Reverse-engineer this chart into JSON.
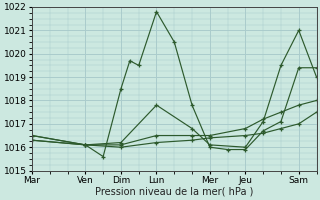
{
  "title": "Pression niveau de la mer( hPa )",
  "bg_color": "#cce8e0",
  "grid_color": "#aacccc",
  "line_color": "#2d5a2d",
  "x_labels": [
    "Mar",
    "Ven",
    "Dim",
    "Lun",
    "Mer",
    "Jeu",
    "Sam"
  ],
  "x_tick_pos": [
    0,
    3,
    5,
    7,
    10,
    12,
    15
  ],
  "ylim": [
    1015,
    1022
  ],
  "yticks": [
    1015,
    1016,
    1017,
    1018,
    1019,
    1020,
    1021,
    1022
  ],
  "xlim": [
    0,
    16
  ],
  "series": [
    {
      "x": [
        0,
        3,
        4,
        5,
        5.5,
        6,
        7,
        8,
        9,
        10,
        11,
        12,
        13,
        14,
        15,
        16
      ],
      "y": [
        1016.5,
        1016.1,
        1015.6,
        1018.5,
        1019.7,
        1019.5,
        1021.8,
        1020.5,
        1017.8,
        1016.0,
        1015.9,
        1015.9,
        1016.7,
        1017.1,
        1019.4,
        1019.4
      ]
    },
    {
      "x": [
        0,
        3,
        5,
        7,
        9,
        10,
        12,
        13,
        14,
        15,
        16
      ],
      "y": [
        1016.5,
        1016.1,
        1016.2,
        1017.8,
        1016.8,
        1016.1,
        1016.0,
        1017.1,
        1019.5,
        1021.0,
        1019.0
      ]
    },
    {
      "x": [
        0,
        3,
        5,
        7,
        9,
        10,
        12,
        13,
        14,
        15,
        16
      ],
      "y": [
        1016.3,
        1016.1,
        1016.1,
        1016.5,
        1016.5,
        1016.5,
        1016.8,
        1017.2,
        1017.5,
        1017.8,
        1018.0
      ]
    },
    {
      "x": [
        0,
        3,
        5,
        7,
        9,
        10,
        12,
        13,
        14,
        15,
        16
      ],
      "y": [
        1016.3,
        1016.1,
        1016.0,
        1016.2,
        1016.3,
        1016.4,
        1016.5,
        1016.6,
        1016.8,
        1017.0,
        1017.5
      ]
    }
  ]
}
